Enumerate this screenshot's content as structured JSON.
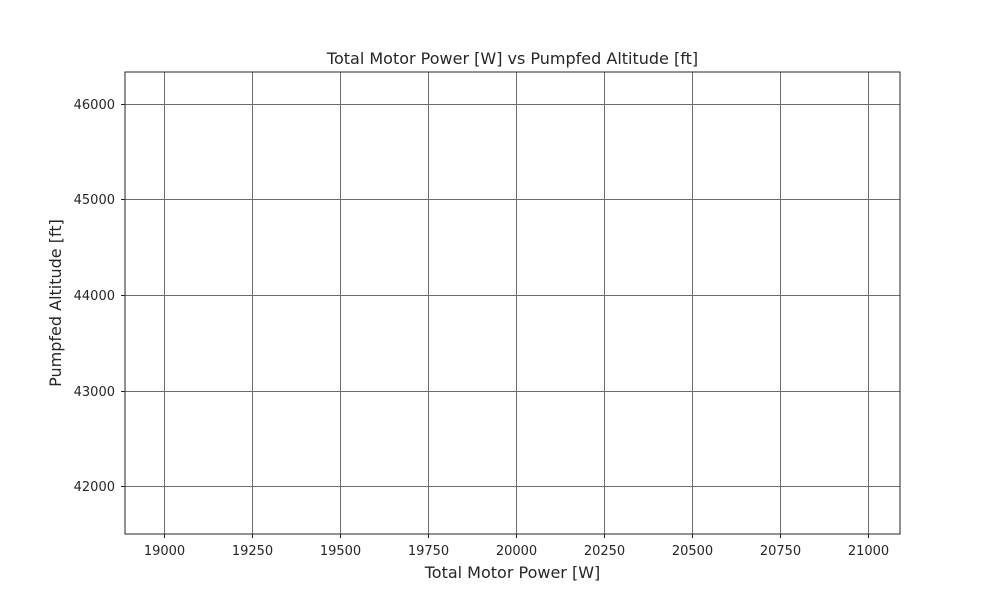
{
  "chart_data": {
    "type": "scatter",
    "title": "Total Motor Power [W] vs Pumpfed Altitude [ft]",
    "xlabel": "Total Motor Power [W]",
    "ylabel": "Pumpfed Altitude [ft]",
    "xlim": [
      18890,
      21090
    ],
    "ylim": [
      41500,
      46330
    ],
    "xticks": [
      "19000",
      "19250",
      "19500",
      "19750",
      "20000",
      "20250",
      "20500",
      "20750",
      "21000"
    ],
    "yticks": [
      "42000",
      "43000",
      "44000",
      "45000",
      "46000"
    ],
    "grid": true,
    "series": []
  }
}
